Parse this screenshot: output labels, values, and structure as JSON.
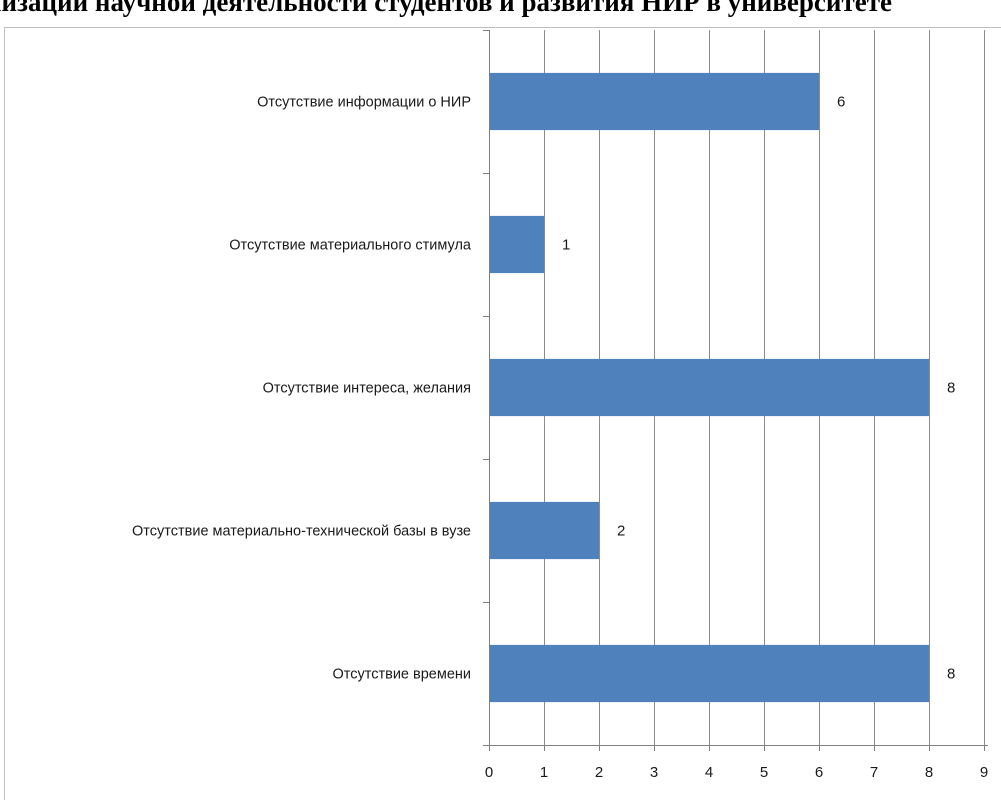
{
  "chart_data": {
    "type": "bar",
    "orientation": "horizontal",
    "title": "низации научной деятельности студентов и развития НИР в университете",
    "categories": [
      "Отсутствие информации о НИР",
      "Отсутствие материального стимула",
      "Отсутствие интереса, желания",
      "Отсутствие материально-технической базы в вузе",
      "Отсутствие времени"
    ],
    "values": [
      6,
      1,
      8,
      2,
      8
    ],
    "data_labels": [
      "6",
      "1",
      "8",
      "2",
      "8"
    ],
    "xlim": [
      0,
      9
    ],
    "x_ticks": [
      "0",
      "1",
      "2",
      "3",
      "4",
      "5",
      "6",
      "7",
      "8",
      "9"
    ],
    "xlabel": "",
    "ylabel": "",
    "grid": "vertical",
    "legend": "none",
    "colors": {
      "bar": "#4F81BD",
      "grid": "#8C8C8C",
      "axis": "#7F7F7F",
      "frame": "#BFBFBF",
      "text": "#1a1a1a"
    }
  }
}
